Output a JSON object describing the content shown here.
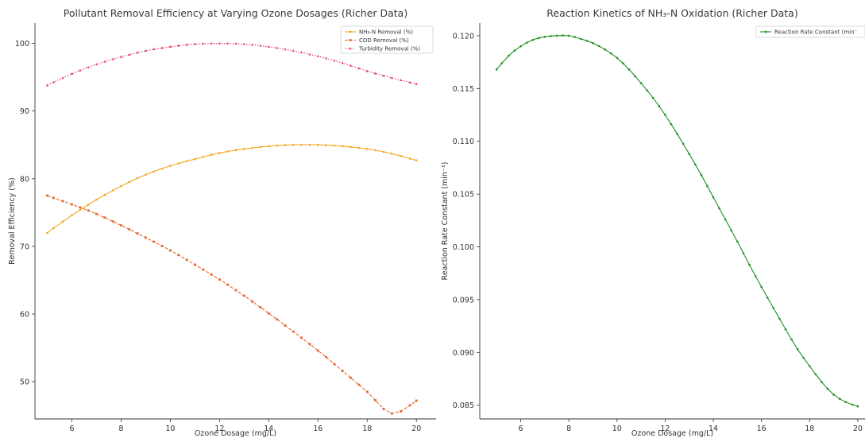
{
  "chart_data": [
    {
      "type": "line",
      "title": "Pollutant Removal Efficiency at Varying Ozone Dosages (Richer Data)",
      "xlabel": "Ozone Dosage (mg/L)",
      "ylabel": "Removal Efficiency (%)",
      "xlim": [
        4.5,
        20.8
      ],
      "ylim": [
        44.5,
        103
      ],
      "xticks": [
        6,
        8,
        10,
        12,
        14,
        16,
        18,
        20
      ],
      "yticks": [
        50,
        60,
        70,
        80,
        90,
        100
      ],
      "legend_position": "top-right",
      "series": [
        {
          "name": "NH₃-N Removal (%)",
          "color": "#f5a623",
          "marker": "circle",
          "x": [
            5,
            6,
            7,
            8,
            9,
            10,
            11,
            12,
            13,
            14,
            15,
            16,
            17,
            18,
            19,
            20
          ],
          "values": [
            72.0,
            74.6,
            76.9,
            78.9,
            80.6,
            81.9,
            82.9,
            83.8,
            84.4,
            84.8,
            85.0,
            85.0,
            84.8,
            84.4,
            83.7,
            82.7
          ]
        },
        {
          "name": "COD Removal (%)",
          "color": "#e8662d",
          "marker": "square",
          "x": [
            5,
            6,
            7,
            8,
            9,
            10,
            11,
            12,
            13,
            14,
            15,
            16,
            17,
            18,
            19,
            20
          ],
          "values": [
            77.5,
            76.2,
            74.8,
            73.1,
            71.3,
            69.4,
            67.3,
            65.1,
            62.7,
            60.1,
            57.4,
            54.6,
            51.6,
            48.5,
            45.3,
            47.2
          ]
        },
        {
          "name": "Turbidity Removal (%)",
          "color": "#e8365c",
          "marker": "triangle",
          "x": [
            5,
            6,
            7,
            8,
            9,
            10,
            11,
            12,
            13,
            14,
            15,
            16,
            17,
            18,
            19,
            20
          ],
          "values": [
            93.8,
            95.5,
            96.9,
            98.0,
            98.9,
            99.5,
            99.9,
            100.0,
            99.9,
            99.5,
            98.9,
            98.1,
            97.1,
            95.9,
            94.9,
            94.0
          ]
        }
      ]
    },
    {
      "type": "line",
      "title": "Reaction Kinetics of NH₃-N Oxidation (Richer Data)",
      "xlabel": "Ozone Dosage (mg/L)",
      "ylabel": "Reaction Rate Constant (min⁻¹)",
      "xlim": [
        4.3,
        20.3
      ],
      "ylim": [
        0.0837,
        0.1212
      ],
      "xticks": [
        6,
        8,
        10,
        12,
        14,
        16,
        18,
        20
      ],
      "yticks": [
        0.085,
        0.09,
        0.095,
        0.1,
        0.105,
        0.11,
        0.115,
        0.12
      ],
      "yticklabels": [
        "0.085",
        "0.090",
        "0.095",
        "0.100",
        "0.105",
        "0.110",
        "0.115",
        "0.120"
      ],
      "legend_position": "top-right",
      "series": [
        {
          "name": "Reaction Rate Constant (min⁻¹)",
          "legend_label": "Reaction Rate Constant (min⁻",
          "color": "#1f8f1f",
          "marker": "circle",
          "x": [
            5,
            5.5,
            6,
            6.5,
            7,
            7.5,
            8,
            8.5,
            9,
            9.5,
            10,
            10.5,
            11,
            11.5,
            12,
            12.5,
            13,
            13.5,
            14,
            14.5,
            15,
            15.5,
            16,
            16.5,
            17,
            17.5,
            18,
            18.5,
            19,
            19.5,
            20
          ],
          "values": [
            0.1168,
            0.1181,
            0.119,
            0.1196,
            0.1199,
            0.12,
            0.12,
            0.1197,
            0.1193,
            0.1187,
            0.1179,
            0.1168,
            0.1155,
            0.1141,
            0.1125,
            0.1107,
            0.1088,
            0.1068,
            0.1047,
            0.1026,
            0.1005,
            0.0983,
            0.0962,
            0.0942,
            0.0922,
            0.0903,
            0.0887,
            0.0872,
            0.086,
            0.0853,
            0.0849
          ]
        }
      ]
    }
  ]
}
